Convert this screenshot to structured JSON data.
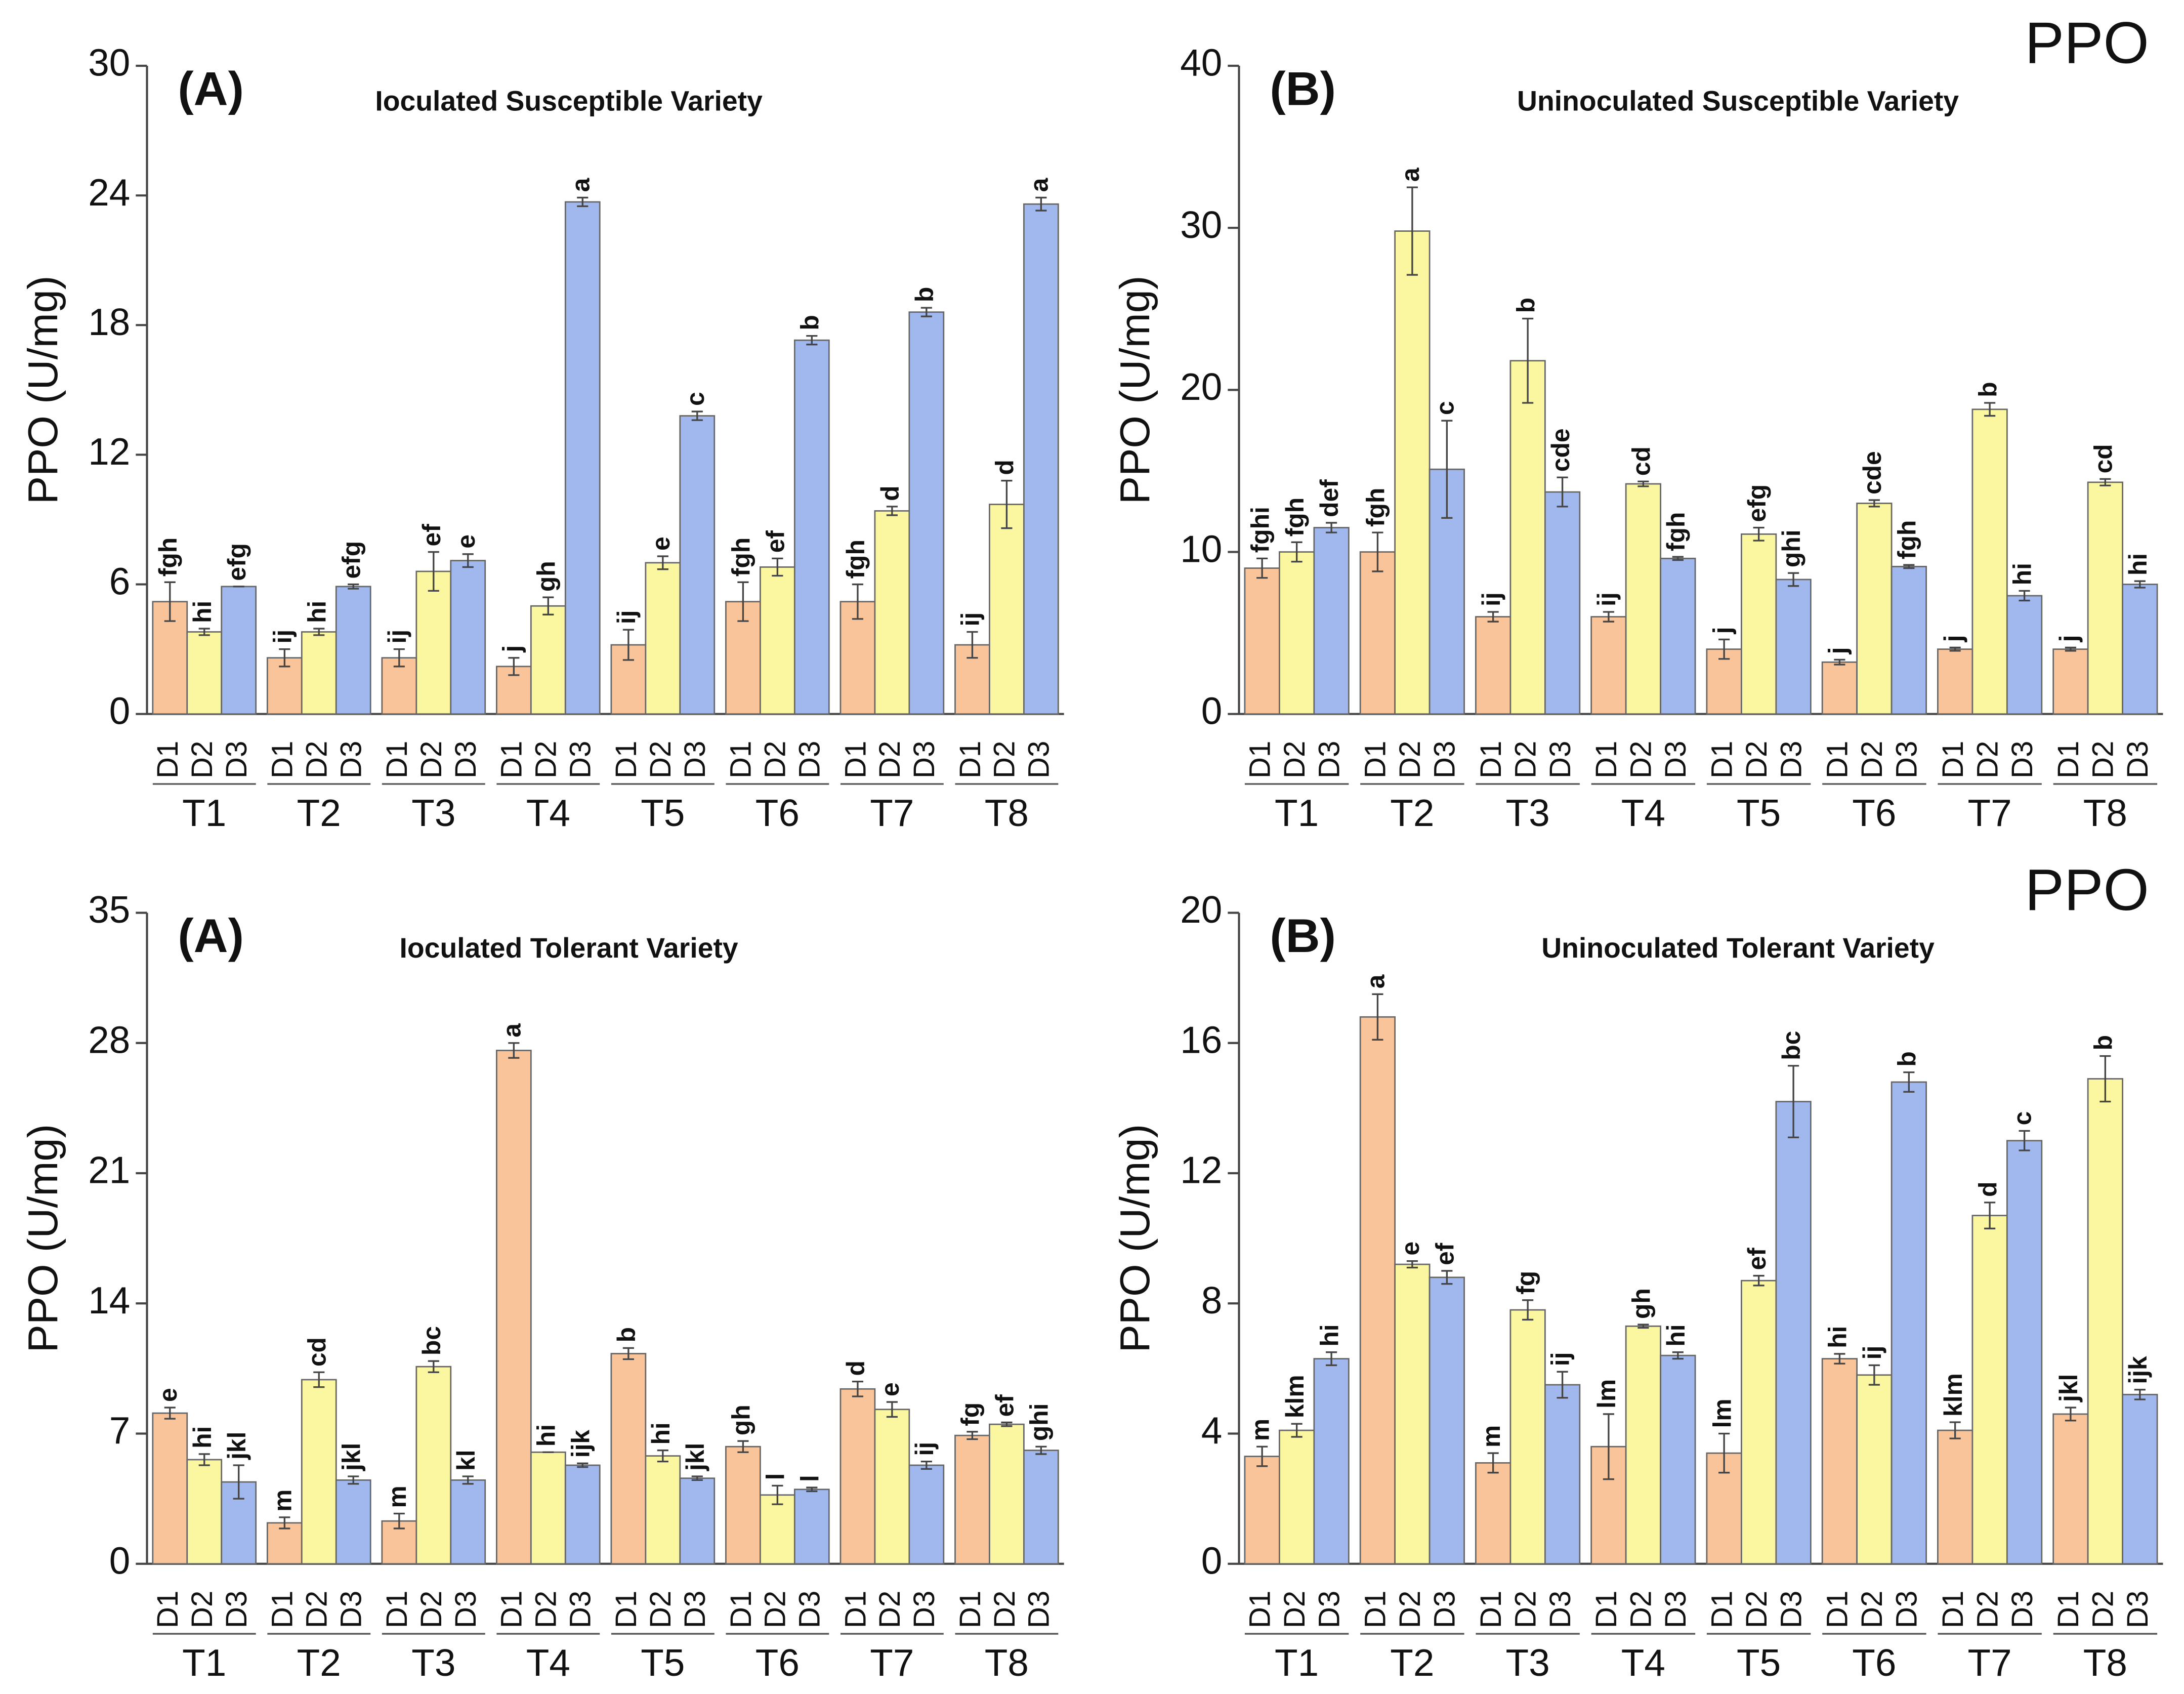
{
  "chart_data": [
    {
      "type": "bar",
      "title": "(A)",
      "subtitle": "Ioculated Susceptible Variety",
      "y_label": "PPO (U/mg)",
      "categories": [
        "T1",
        "T2",
        "T3",
        "T4",
        "T5",
        "T6",
        "T7",
        "T8"
      ],
      "ylim": [
        0,
        30
      ],
      "yticks": [
        0,
        6,
        12,
        18,
        24,
        30
      ],
      "series": [
        {
          "name": "D1",
          "color": "#f9c49a",
          "values": [
            5.2,
            2.6,
            2.6,
            2.2,
            3.2,
            5.2,
            5.2,
            3.2
          ],
          "errors": [
            0.9,
            0.4,
            0.4,
            0.4,
            0.7,
            0.9,
            0.8,
            0.6
          ],
          "letters": [
            "fgh",
            "ij",
            "ij",
            "j",
            "ij",
            "fgh",
            "fgh",
            "ij"
          ]
        },
        {
          "name": "D2",
          "color": "#fbf7a1",
          "values": [
            3.8,
            3.8,
            6.6,
            5.0,
            7.0,
            6.8,
            9.4,
            9.7
          ],
          "errors": [
            0.15,
            0.15,
            0.9,
            0.4,
            0.3,
            0.4,
            0.2,
            1.1
          ],
          "letters": [
            "hi",
            "hi",
            "ef",
            "gh",
            "e",
            "ef",
            "d",
            "d"
          ]
        },
        {
          "name": "D3",
          "color": "#a0b8ee",
          "values": [
            5.9,
            5.9,
            7.1,
            23.7,
            13.8,
            17.3,
            18.6,
            23.6
          ],
          "errors": [
            0,
            0.1,
            0.3,
            0.2,
            0.2,
            0.2,
            0.2,
            0.3
          ],
          "letters": [
            "efg",
            "efg",
            "e",
            "a",
            "c",
            "b",
            "b",
            "a"
          ]
        }
      ]
    },
    {
      "type": "bar",
      "title": "(B)",
      "subtitle": "Uninoculated Susceptible Variety",
      "y_label": "PPO (U/mg)",
      "corner_label": "PPO",
      "categories": [
        "T1",
        "T2",
        "T3",
        "T4",
        "T5",
        "T6",
        "T7",
        "T8"
      ],
      "ylim": [
        0,
        40
      ],
      "yticks": [
        0,
        10,
        20,
        30,
        40
      ],
      "series": [
        {
          "name": "D1",
          "color": "#f9c49a",
          "values": [
            9,
            10,
            6,
            6,
            4,
            3.2,
            4,
            4
          ],
          "errors": [
            0.6,
            1.2,
            0.3,
            0.3,
            0.6,
            0.15,
            0.1,
            0.1
          ],
          "letters": [
            "fghi",
            "fgh",
            "ij",
            "ij",
            "j",
            "j",
            "j",
            "j"
          ]
        },
        {
          "name": "D2",
          "color": "#fbf7a1",
          "values": [
            10,
            29.8,
            21.8,
            14.2,
            11.1,
            13,
            18.8,
            14.3
          ],
          "errors": [
            0.6,
            2.7,
            2.6,
            0.15,
            0.4,
            0.2,
            0.4,
            0.2
          ],
          "letters": [
            "fgh",
            "a",
            "b",
            "cd",
            "efg",
            "cde",
            "b",
            "cd"
          ]
        },
        {
          "name": "D3",
          "color": "#a0b8ee",
          "values": [
            11.5,
            15.1,
            13.7,
            9.6,
            8.3,
            9.1,
            7.3,
            8
          ],
          "errors": [
            0.3,
            3,
            0.9,
            0.1,
            0.4,
            0.1,
            0.3,
            0.2
          ],
          "letters": [
            "def",
            "c",
            "cde",
            "fgh",
            "ghi",
            "fgh",
            "hi",
            "hi"
          ]
        }
      ]
    },
    {
      "type": "bar",
      "title": "(A)",
      "subtitle": "Ioculated Tolerant Variety",
      "y_label": "PPO (U/mg)",
      "categories": [
        "T1",
        "T2",
        "T3",
        "T4",
        "T5",
        "T6",
        "T7",
        "T8"
      ],
      "ylim": [
        0,
        35
      ],
      "yticks": [
        0,
        7,
        14,
        21,
        28,
        35
      ],
      "series": [
        {
          "name": "D1",
          "color": "#f9c49a",
          "values": [
            8.1,
            2.2,
            2.3,
            27.6,
            11.3,
            6.3,
            9.4,
            6.9
          ],
          "errors": [
            0.3,
            0.3,
            0.4,
            0.4,
            0.3,
            0.3,
            0.4,
            0.2
          ],
          "letters": [
            "e",
            "m",
            "m",
            "a",
            "b",
            "gh",
            "d",
            "fg"
          ]
        },
        {
          "name": "D2",
          "color": "#fbf7a1",
          "values": [
            5.6,
            9.9,
            10.6,
            6,
            5.8,
            3.7,
            8.3,
            7.5
          ],
          "errors": [
            0.3,
            0.4,
            0.3,
            0,
            0.3,
            0.5,
            0.4,
            0.1
          ],
          "letters": [
            "hi",
            "cd",
            "bc",
            "hi",
            "hi",
            "l",
            "e",
            "ef"
          ]
        },
        {
          "name": "D3",
          "color": "#a0b8ee",
          "values": [
            4.4,
            4.5,
            4.5,
            5.3,
            4.6,
            4,
            5.3,
            6.1
          ],
          "errors": [
            0.9,
            0.2,
            0.2,
            0.1,
            0.1,
            0.1,
            0.2,
            0.2
          ],
          "letters": [
            "jkl",
            "jkl",
            "kl",
            "ijk",
            "jkl",
            "l",
            "ij",
            "ghi"
          ]
        }
      ]
    },
    {
      "type": "bar",
      "title": "(B)",
      "subtitle": "Uninoculated Tolerant Variety",
      "y_label": "PPO (U/mg)",
      "corner_label": "PPO",
      "categories": [
        "T1",
        "T2",
        "T3",
        "T4",
        "T5",
        "T6",
        "T7",
        "T8"
      ],
      "ylim": [
        0,
        20
      ],
      "yticks": [
        0,
        4,
        8,
        12,
        16,
        20
      ],
      "series": [
        {
          "name": "D1",
          "color": "#f9c49a",
          "values": [
            3.3,
            16.8,
            3.1,
            3.6,
            3.4,
            6.3,
            4.1,
            4.6
          ],
          "errors": [
            0.3,
            0.7,
            0.3,
            1,
            0.6,
            0.15,
            0.25,
            0.2
          ],
          "letters": [
            "m",
            "a",
            "m",
            "lm",
            "lm",
            "hi",
            "klm",
            "jkl"
          ]
        },
        {
          "name": "D2",
          "color": "#fbf7a1",
          "values": [
            4.1,
            9.2,
            7.8,
            7.3,
            8.7,
            5.8,
            10.7,
            14.9
          ],
          "errors": [
            0.2,
            0.1,
            0.3,
            0.05,
            0.15,
            0.3,
            0.4,
            0.7
          ],
          "letters": [
            "klm",
            "e",
            "fg",
            "gh",
            "ef",
            "ij",
            "d",
            "b"
          ]
        },
        {
          "name": "D3",
          "color": "#a0b8ee",
          "values": [
            6.3,
            8.8,
            5.5,
            6.4,
            14.2,
            14.8,
            13,
            5.2
          ],
          "errors": [
            0.2,
            0.2,
            0.4,
            0.1,
            1.1,
            0.3,
            0.3,
            0.15
          ],
          "letters": [
            "hi",
            "ef",
            "ij",
            "hi",
            "bc",
            "b",
            "c",
            "ijk"
          ]
        }
      ]
    }
  ]
}
